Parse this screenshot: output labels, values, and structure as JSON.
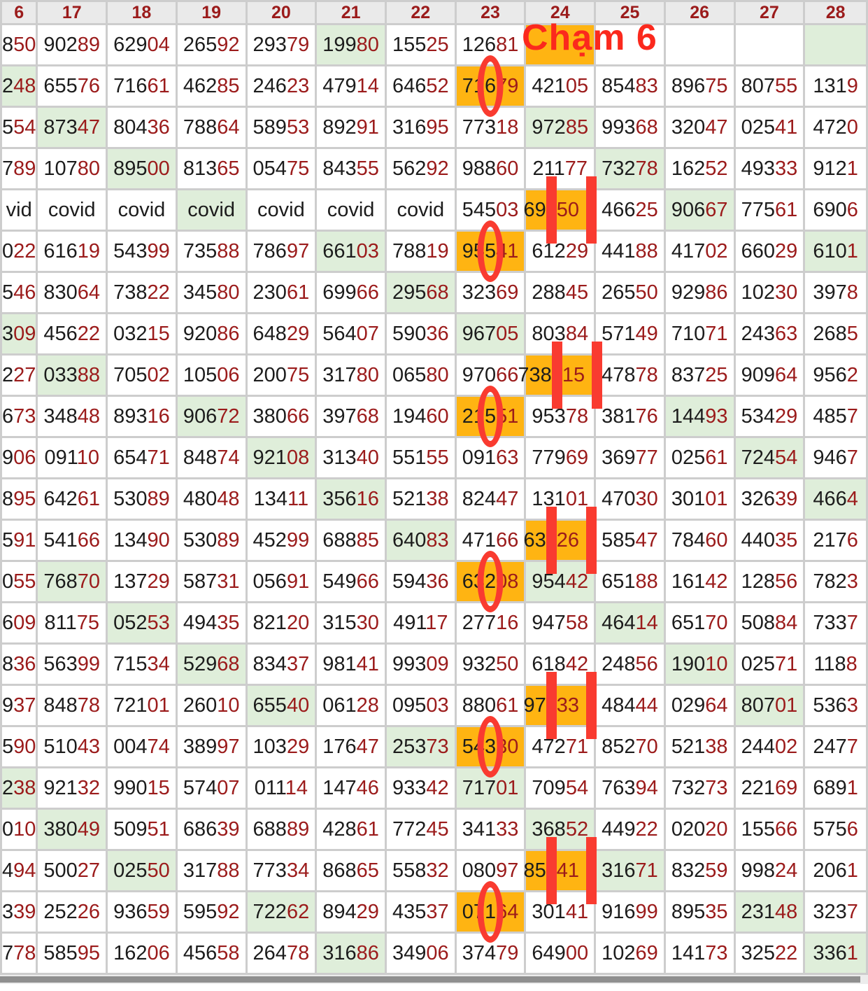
{
  "annotation": {
    "label": "Chạm 6"
  },
  "colors": {
    "highlight_orange": "#ffb412",
    "highlight_green": "#dfeeda",
    "annotation_red": "#f93b30",
    "cham_text_red": "#fb291d",
    "digit_black": "#1c1c1c",
    "digit_red": "#9b1b1b",
    "header_bg": "#eaeaea",
    "grid": "#cdcdcd"
  },
  "table": {
    "headers": [
      "6",
      "17",
      "18",
      "19",
      "20",
      "21",
      "22",
      "23",
      "24",
      "25",
      "26",
      "27",
      "28"
    ],
    "rows": [
      {
        "cells": [
          {
            "t": "850"
          },
          {
            "t": "90289"
          },
          {
            "t": "62904"
          },
          {
            "t": "26592"
          },
          {
            "t": "29379"
          },
          {
            "t": "19980",
            "bg": "green"
          },
          {
            "t": "15525"
          },
          {
            "t": "12681"
          },
          {
            "t": "",
            "bg": "orange"
          },
          {
            "t": ""
          },
          {
            "t": ""
          },
          {
            "t": ""
          },
          {
            "t": "",
            "bg": "green"
          }
        ]
      },
      {
        "cells": [
          {
            "t": "248",
            "bg": "green"
          },
          {
            "t": "65576"
          },
          {
            "t": "71661"
          },
          {
            "t": "46285"
          },
          {
            "t": "24623"
          },
          {
            "t": "47914"
          },
          {
            "t": "64652"
          },
          {
            "t": "71679",
            "bg": "orange",
            "ann": "zero"
          },
          {
            "t": "42105"
          },
          {
            "t": "85483"
          },
          {
            "t": "89675"
          },
          {
            "t": "80755"
          },
          {
            "t": "1319"
          }
        ]
      },
      {
        "cells": [
          {
            "t": "554"
          },
          {
            "t": "87347",
            "bg": "green"
          },
          {
            "t": "80436"
          },
          {
            "t": "78864"
          },
          {
            "t": "58953"
          },
          {
            "t": "89291"
          },
          {
            "t": "31695"
          },
          {
            "t": "77318"
          },
          {
            "t": "97285",
            "bg": "green"
          },
          {
            "t": "99368"
          },
          {
            "t": "32047"
          },
          {
            "t": "02541"
          },
          {
            "t": "4720"
          }
        ]
      },
      {
        "cells": [
          {
            "t": "789"
          },
          {
            "t": "10780"
          },
          {
            "t": "89500",
            "bg": "green"
          },
          {
            "t": "81365"
          },
          {
            "t": "05475"
          },
          {
            "t": "84355"
          },
          {
            "t": "56292"
          },
          {
            "t": "98860"
          },
          {
            "t": "21177"
          },
          {
            "t": "73278",
            "bg": "green"
          },
          {
            "t": "16252"
          },
          {
            "t": "49333"
          },
          {
            "t": "9121"
          }
        ]
      },
      {
        "cells": [
          {
            "t": "vid"
          },
          {
            "t": "covid"
          },
          {
            "t": "covid"
          },
          {
            "t": "covid",
            "bg": "green"
          },
          {
            "t": "covid"
          },
          {
            "t": "covid"
          },
          {
            "t": "covid"
          },
          {
            "t": "54503"
          },
          {
            "segs": [
              "69",
              "50"
            ],
            "bg": "orange",
            "ann": "bars"
          },
          {
            "t": "46625"
          },
          {
            "t": "90667",
            "bg": "green"
          },
          {
            "t": "77561"
          },
          {
            "t": "6906"
          }
        ]
      },
      {
        "cells": [
          {
            "t": "022"
          },
          {
            "t": "61619"
          },
          {
            "t": "54399"
          },
          {
            "t": "73588"
          },
          {
            "t": "78697"
          },
          {
            "t": "66103",
            "bg": "green"
          },
          {
            "t": "78819"
          },
          {
            "t": "95541",
            "bg": "orange",
            "ann": "zero"
          },
          {
            "t": "61229"
          },
          {
            "t": "44188"
          },
          {
            "t": "41702"
          },
          {
            "t": "66029"
          },
          {
            "t": "6101",
            "bg": "green"
          }
        ]
      },
      {
        "cells": [
          {
            "t": "546"
          },
          {
            "t": "83064"
          },
          {
            "t": "73822"
          },
          {
            "t": "34580"
          },
          {
            "t": "23061"
          },
          {
            "t": "69966"
          },
          {
            "t": "29568",
            "bg": "green"
          },
          {
            "t": "32369"
          },
          {
            "t": "28845"
          },
          {
            "t": "26550"
          },
          {
            "t": "92986"
          },
          {
            "t": "10230"
          },
          {
            "t": "3978"
          }
        ]
      },
      {
        "cells": [
          {
            "t": "309",
            "bg": "green"
          },
          {
            "t": "45622"
          },
          {
            "t": "03215"
          },
          {
            "t": "92086"
          },
          {
            "t": "64829"
          },
          {
            "t": "56407"
          },
          {
            "t": "59036"
          },
          {
            "t": "96705",
            "bg": "green"
          },
          {
            "t": "80384"
          },
          {
            "t": "57149"
          },
          {
            "t": "71071"
          },
          {
            "t": "24363"
          },
          {
            "t": "2685"
          }
        ]
      },
      {
        "cells": [
          {
            "t": "227"
          },
          {
            "t": "03388",
            "bg": "green"
          },
          {
            "t": "70502"
          },
          {
            "t": "10506"
          },
          {
            "t": "20075"
          },
          {
            "t": "31780"
          },
          {
            "t": "06580"
          },
          {
            "t": "97066"
          },
          {
            "segs": [
              "738",
              "15"
            ],
            "bg": "orange",
            "ann": "bars"
          },
          {
            "t": "47878"
          },
          {
            "t": "83725"
          },
          {
            "t": "90964"
          },
          {
            "t": "9562"
          }
        ]
      },
      {
        "cells": [
          {
            "t": "673"
          },
          {
            "t": "34848"
          },
          {
            "t": "89316"
          },
          {
            "t": "90672",
            "bg": "green"
          },
          {
            "t": "38066"
          },
          {
            "t": "39768"
          },
          {
            "t": "19460"
          },
          {
            "t": "21551",
            "bg": "orange",
            "ann": "zero"
          },
          {
            "t": "95378"
          },
          {
            "t": "38176"
          },
          {
            "t": "14493",
            "bg": "green"
          },
          {
            "t": "53429"
          },
          {
            "t": "4857"
          }
        ]
      },
      {
        "cells": [
          {
            "t": "906"
          },
          {
            "t": "09110"
          },
          {
            "t": "65471"
          },
          {
            "t": "84874"
          },
          {
            "t": "92108",
            "bg": "green"
          },
          {
            "t": "31340"
          },
          {
            "t": "55155"
          },
          {
            "t": "09163"
          },
          {
            "t": "77969"
          },
          {
            "t": "36977"
          },
          {
            "t": "02561"
          },
          {
            "t": "72454",
            "bg": "green"
          },
          {
            "t": "9467"
          }
        ]
      },
      {
        "cells": [
          {
            "t": "895"
          },
          {
            "t": "64261"
          },
          {
            "t": "53089"
          },
          {
            "t": "48048"
          },
          {
            "t": "13411"
          },
          {
            "t": "35616",
            "bg": "green"
          },
          {
            "t": "52138"
          },
          {
            "t": "82447"
          },
          {
            "t": "13101"
          },
          {
            "t": "47030"
          },
          {
            "t": "30101"
          },
          {
            "t": "32639"
          },
          {
            "t": "4664",
            "bg": "green"
          }
        ]
      },
      {
        "cells": [
          {
            "t": "591"
          },
          {
            "t": "54166"
          },
          {
            "t": "13490"
          },
          {
            "t": "53089"
          },
          {
            "t": "45299"
          },
          {
            "t": "68885"
          },
          {
            "t": "64083",
            "bg": "green"
          },
          {
            "t": "47166"
          },
          {
            "segs": [
              "63",
              "26"
            ],
            "bg": "orange",
            "ann": "bars"
          },
          {
            "t": "58547"
          },
          {
            "t": "78460"
          },
          {
            "t": "44035"
          },
          {
            "t": "2176"
          }
        ]
      },
      {
        "cells": [
          {
            "t": "055"
          },
          {
            "t": "76870",
            "bg": "green"
          },
          {
            "t": "13729"
          },
          {
            "t": "58731"
          },
          {
            "t": "05691"
          },
          {
            "t": "54966"
          },
          {
            "t": "59436"
          },
          {
            "t": "63208",
            "bg": "orange",
            "ann": "zero"
          },
          {
            "t": "95442",
            "bg": "green"
          },
          {
            "t": "65188"
          },
          {
            "t": "16142"
          },
          {
            "t": "12856"
          },
          {
            "t": "7823"
          }
        ]
      },
      {
        "cells": [
          {
            "t": "609"
          },
          {
            "t": "81175"
          },
          {
            "t": "05253",
            "bg": "green"
          },
          {
            "t": "49435"
          },
          {
            "t": "82120"
          },
          {
            "t": "31530"
          },
          {
            "t": "49117"
          },
          {
            "t": "27716"
          },
          {
            "t": "94758"
          },
          {
            "t": "46414",
            "bg": "green"
          },
          {
            "t": "65170"
          },
          {
            "t": "50884"
          },
          {
            "t": "7337"
          }
        ]
      },
      {
        "cells": [
          {
            "t": "836"
          },
          {
            "t": "56399"
          },
          {
            "t": "71534"
          },
          {
            "t": "52968",
            "bg": "green"
          },
          {
            "t": "83437"
          },
          {
            "t": "98141"
          },
          {
            "t": "99309"
          },
          {
            "t": "93250"
          },
          {
            "t": "61842"
          },
          {
            "t": "24856"
          },
          {
            "t": "19010",
            "bg": "green"
          },
          {
            "t": "02571"
          },
          {
            "t": "1188"
          }
        ]
      },
      {
        "cells": [
          {
            "t": "937"
          },
          {
            "t": "84878"
          },
          {
            "t": "72101"
          },
          {
            "t": "26010"
          },
          {
            "t": "65540",
            "bg": "green"
          },
          {
            "t": "06128"
          },
          {
            "t": "09503"
          },
          {
            "t": "88061"
          },
          {
            "segs": [
              "97",
              "33"
            ],
            "bg": "orange",
            "ann": "bars"
          },
          {
            "t": "48444"
          },
          {
            "t": "02964"
          },
          {
            "t": "80701",
            "bg": "green"
          },
          {
            "t": "5363"
          }
        ]
      },
      {
        "cells": [
          {
            "t": "590"
          },
          {
            "t": "51043"
          },
          {
            "t": "00474"
          },
          {
            "t": "38997"
          },
          {
            "t": "10329"
          },
          {
            "t": "17647"
          },
          {
            "t": "25373",
            "bg": "green"
          },
          {
            "t": "54330",
            "bg": "orange",
            "ann": "zero"
          },
          {
            "t": "47271"
          },
          {
            "t": "85270"
          },
          {
            "t": "52138"
          },
          {
            "t": "24402"
          },
          {
            "t": "2477"
          }
        ]
      },
      {
        "cells": [
          {
            "t": "238",
            "bg": "green"
          },
          {
            "t": "92132"
          },
          {
            "t": "99015"
          },
          {
            "t": "57407"
          },
          {
            "t": "01114"
          },
          {
            "t": "14746"
          },
          {
            "t": "93342"
          },
          {
            "t": "71701",
            "bg": "green"
          },
          {
            "t": "70954"
          },
          {
            "t": "76394"
          },
          {
            "t": "73273"
          },
          {
            "t": "22169"
          },
          {
            "t": "6891"
          }
        ]
      },
      {
        "cells": [
          {
            "t": "010"
          },
          {
            "t": "38049",
            "bg": "green"
          },
          {
            "t": "50951"
          },
          {
            "t": "68639"
          },
          {
            "t": "68889"
          },
          {
            "t": "42861"
          },
          {
            "t": "77245"
          },
          {
            "t": "34133"
          },
          {
            "t": "36852",
            "bg": "green"
          },
          {
            "t": "44922"
          },
          {
            "t": "02020"
          },
          {
            "t": "15566"
          },
          {
            "t": "5756"
          }
        ]
      },
      {
        "cells": [
          {
            "t": "494"
          },
          {
            "t": "50027"
          },
          {
            "t": "02550",
            "bg": "green"
          },
          {
            "t": "31788"
          },
          {
            "t": "77334"
          },
          {
            "t": "86865"
          },
          {
            "t": "55832"
          },
          {
            "t": "08097"
          },
          {
            "segs": [
              "85",
              "41"
            ],
            "bg": "orange",
            "ann": "bars"
          },
          {
            "t": "31671",
            "bg": "green"
          },
          {
            "t": "83259"
          },
          {
            "t": "99824"
          },
          {
            "t": "2061"
          }
        ]
      },
      {
        "cells": [
          {
            "t": "339"
          },
          {
            "t": "25226"
          },
          {
            "t": "93659"
          },
          {
            "t": "59592"
          },
          {
            "t": "72262",
            "bg": "green"
          },
          {
            "t": "89429"
          },
          {
            "t": "43537"
          },
          {
            "t": "07164",
            "bg": "orange",
            "ann": "zero"
          },
          {
            "t": "30141"
          },
          {
            "t": "91699"
          },
          {
            "t": "89535"
          },
          {
            "t": "23148",
            "bg": "green"
          },
          {
            "t": "3237"
          }
        ]
      },
      {
        "cells": [
          {
            "t": "778"
          },
          {
            "t": "58595"
          },
          {
            "t": "16206"
          },
          {
            "t": "45658"
          },
          {
            "t": "26478"
          },
          {
            "t": "31686",
            "bg": "green"
          },
          {
            "t": "34906"
          },
          {
            "t": "37479"
          },
          {
            "t": "64900"
          },
          {
            "t": "10269"
          },
          {
            "t": "14173"
          },
          {
            "t": "32522"
          },
          {
            "t": "3361",
            "bg": "green"
          }
        ]
      }
    ]
  }
}
